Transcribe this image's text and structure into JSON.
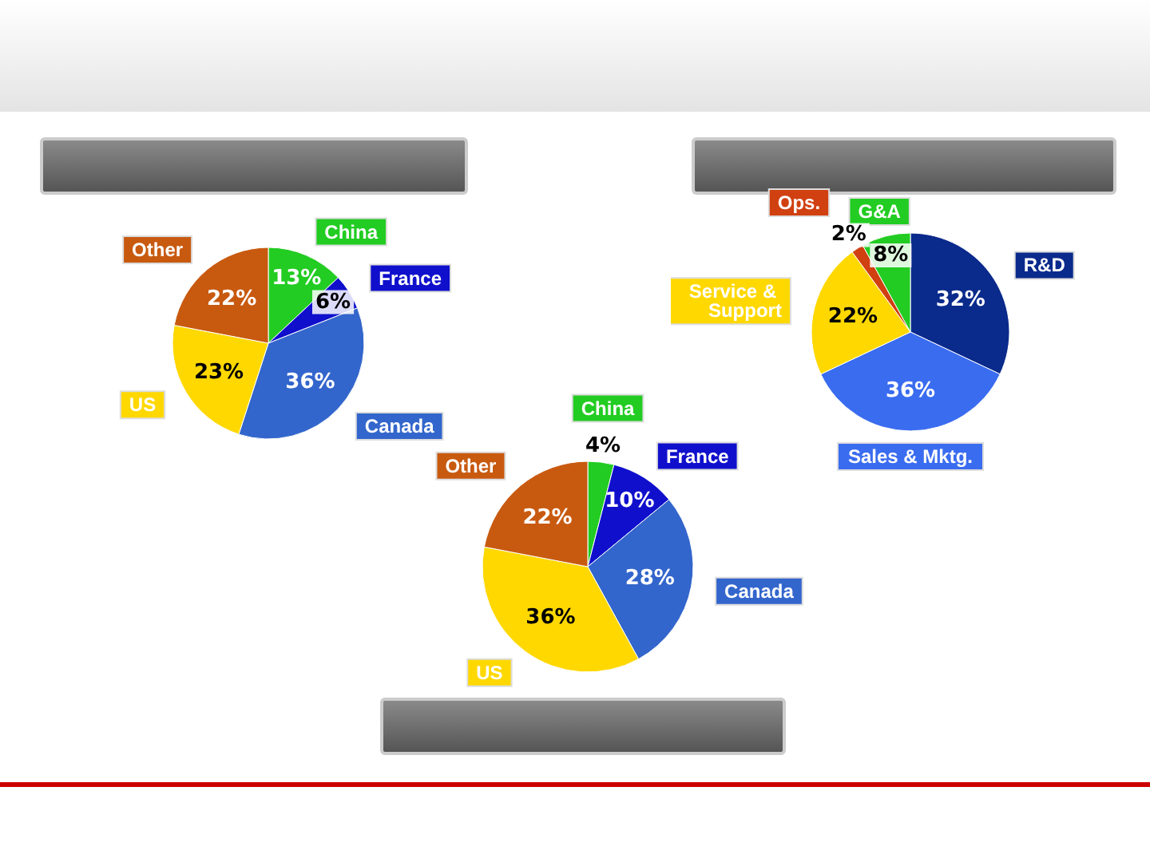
{
  "chart_data": [
    {
      "type": "pie",
      "categories": [
        "China",
        "France",
        "Canada",
        "US",
        "Other"
      ],
      "values": [
        13,
        6,
        36,
        23,
        22
      ],
      "colors": [
        "#22cc22",
        "#1010cc",
        "#3366cc",
        "#ffd800",
        "#c85a10"
      ],
      "value_labels": [
        "13%",
        "6%",
        "36%",
        "23%",
        "22%"
      ]
    },
    {
      "type": "pie",
      "categories": [
        "R&D",
        "Sales & Mktg.",
        "Service & Support",
        "Ops.",
        "G&A"
      ],
      "values": [
        32,
        36,
        22,
        2,
        8
      ],
      "colors": [
        "#0a2a8c",
        "#3a6cf0",
        "#ffd800",
        "#d04010",
        "#22cc22"
      ],
      "value_labels": [
        "32%",
        "36%",
        "22%",
        "2%",
        "8%"
      ]
    },
    {
      "type": "pie",
      "categories": [
        "China",
        "France",
        "Canada",
        "US",
        "Other"
      ],
      "values": [
        4,
        10,
        28,
        36,
        22
      ],
      "colors": [
        "#22cc22",
        "#1010cc",
        "#3366cc",
        "#ffd800",
        "#c85a10"
      ],
      "value_labels": [
        "4%",
        "10%",
        "28%",
        "36%",
        "22%"
      ]
    }
  ]
}
